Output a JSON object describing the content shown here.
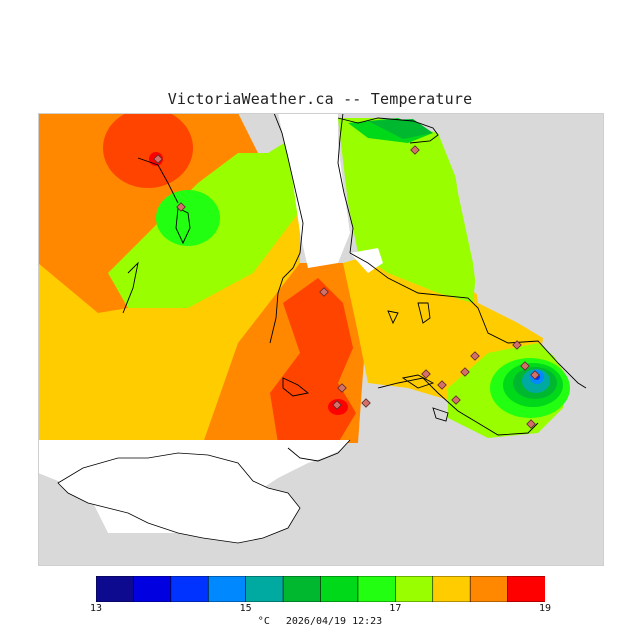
{
  "title": "VictoriaWeather.ca -- Temperature",
  "legend": {
    "ticks": [
      "13",
      "15",
      "17",
      "19"
    ],
    "colors": [
      "#0d0a8f",
      "#0000e0",
      "#0033ff",
      "#0088ff",
      "#00aaa0",
      "#00b830",
      "#00d81a",
      "#22ff10",
      "#99ff00",
      "#ffcc00",
      "#ff8800",
      "#ff4400",
      "#ff0000"
    ],
    "min": 13,
    "max": 19
  },
  "footer": {
    "unit": "°C",
    "timestamp": "2026/04/19 12:23"
  },
  "colors": {
    "land_background": "#d9d9d9",
    "water": "#ffffff",
    "station": "#d4706a"
  }
}
